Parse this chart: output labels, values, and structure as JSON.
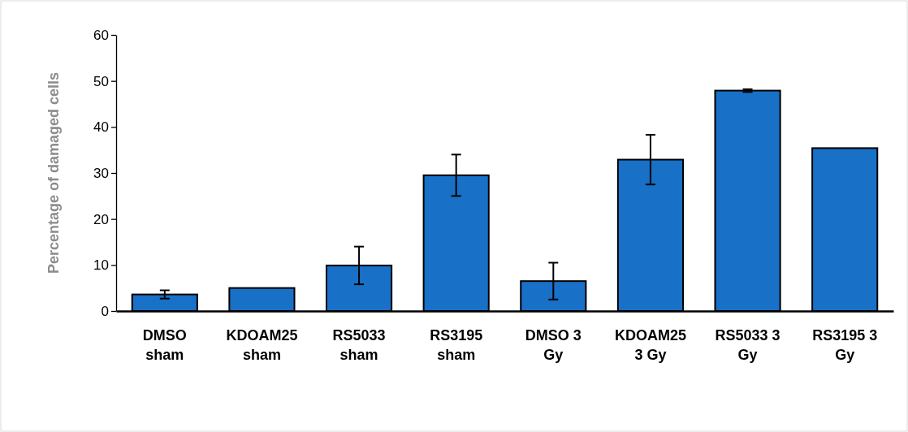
{
  "chart_data": {
    "type": "bar",
    "ylabel": "Percentage of damaged cells",
    "categories": [
      "DMSO sham",
      "KDOAM25 sham",
      "RS5033 sham",
      "RS3195 sham",
      "DMSO 3 Gy",
      "KDOAM25 3 Gy",
      "RS5033 3 Gy",
      "RS3195 3 Gy"
    ],
    "values": [
      3.6,
      5.0,
      9.9,
      29.5,
      6.5,
      32.9,
      47.9,
      35.4
    ],
    "errors": [
      0.9,
      null,
      4.1,
      4.5,
      4.0,
      5.4,
      0.3,
      null
    ],
    "color": "#1870c7",
    "ylim": [
      0,
      60
    ],
    "yticks": [
      0,
      10,
      20,
      30,
      40,
      50,
      60
    ],
    "grid": false
  }
}
